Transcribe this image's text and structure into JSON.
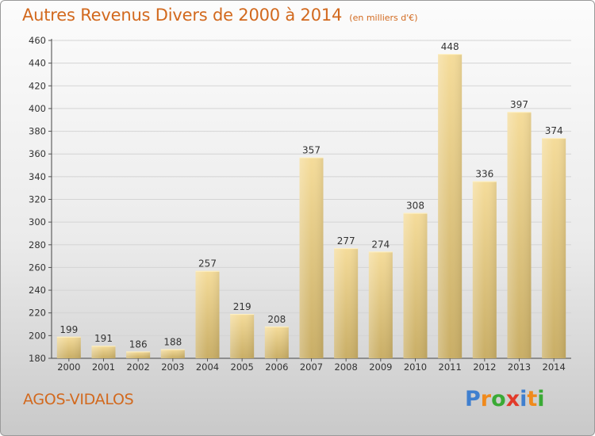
{
  "chart_data": {
    "type": "bar",
    "title": "Autres Revenus Divers de 2000 à 2014",
    "subtitle": "(en milliers d'€)",
    "categories": [
      "2000",
      "2001",
      "2002",
      "2003",
      "2004",
      "2005",
      "2006",
      "2007",
      "2008",
      "2009",
      "2010",
      "2011",
      "2012",
      "2013",
      "2014"
    ],
    "values": [
      199,
      191,
      186,
      188,
      257,
      219,
      208,
      357,
      277,
      274,
      308,
      448,
      336,
      397,
      374
    ],
    "ylim": [
      180,
      460
    ],
    "yticks": [
      180,
      200,
      220,
      240,
      260,
      280,
      300,
      320,
      340,
      360,
      380,
      400,
      420,
      440,
      460
    ],
    "grid": true,
    "bar_color": "#e8c878"
  },
  "commune": "AGOS-VIDALOS",
  "logo": {
    "letters": [
      "P",
      "r",
      "o",
      "x",
      "i",
      "t",
      "i"
    ],
    "colors": [
      "#3f7fcf",
      "#f08a1c",
      "#3aaa35",
      "#e23a2a",
      "#3f7fcf",
      "#f08a1c",
      "#3aaa35"
    ]
  },
  "colors": {
    "title": "#d2691e",
    "text": "#333333"
  }
}
